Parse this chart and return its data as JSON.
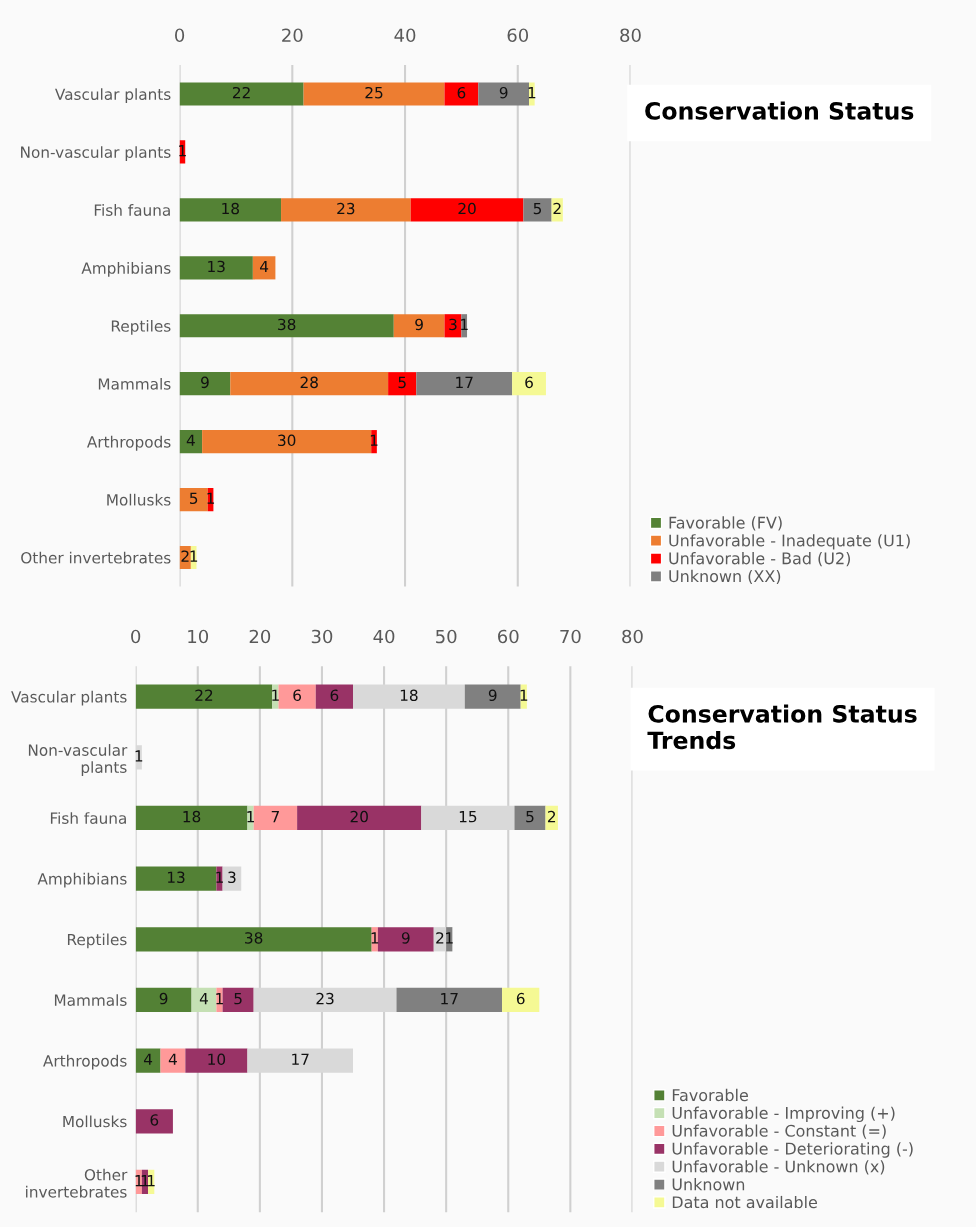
{
  "chart_data": [
    {
      "type": "bar",
      "orientation": "horizontal",
      "stacked": true,
      "title": "Conservation Status",
      "categories": [
        "Vascular plants",
        "Non-vascular plants",
        "Fish fauna",
        "Amphibians",
        "Reptiles",
        "Mammals",
        "Arthropods",
        "Mollusks",
        "Other invertebrates"
      ],
      "series": [
        {
          "name": "Favorable (FV)",
          "color": "#548235",
          "values": [
            22,
            null,
            18,
            13,
            38,
            9,
            4,
            null,
            null
          ]
        },
        {
          "name": "Unfavorable - Inadequate (U1)",
          "color": "#ed7d31",
          "values": [
            25,
            null,
            23,
            4,
            9,
            28,
            30,
            5,
            2
          ]
        },
        {
          "name": "Unfavorable - Bad (U2)",
          "color": "#ff0000",
          "values": [
            6,
            1,
            20,
            null,
            3,
            5,
            1,
            1,
            null
          ]
        },
        {
          "name": "Unknown (XX)",
          "color": "#808080",
          "values": [
            9,
            null,
            5,
            null,
            1,
            17,
            null,
            null,
            null
          ]
        },
        {
          "color": "#f5f994",
          "values": [
            1,
            null,
            2,
            null,
            null,
            6,
            null,
            null,
            1
          ]
        }
      ],
      "xlim": [
        0,
        80
      ],
      "xticks": [
        0,
        20,
        40,
        60,
        80
      ],
      "grid": "x",
      "legend": "bottom right",
      "data_labels": true
    },
    {
      "type": "bar",
      "orientation": "horizontal",
      "stacked": true,
      "title": "Conservation Status Trends",
      "categories": [
        "Vascular plants",
        "Non-vascular plants",
        "Fish fauna",
        "Amphibians",
        "Reptiles",
        "Mammals",
        "Arthropods",
        "Mollusks",
        "Other invertebrates"
      ],
      "series": [
        {
          "name": "Favorable",
          "color": "#538135",
          "values": [
            22,
            null,
            18,
            13,
            38,
            9,
            4,
            null,
            null
          ]
        },
        {
          "name": "Unfavorable - Improving (+)",
          "color": "#c5e0b4",
          "values": [
            1,
            null,
            1,
            null,
            null,
            4,
            null,
            null,
            null
          ]
        },
        {
          "name": "Unfavorable - Constant (=)",
          "color": "#ff9999",
          "values": [
            6,
            null,
            7,
            null,
            1,
            1,
            4,
            null,
            1
          ]
        },
        {
          "name": "Unfavorable - Deteriorating (-)",
          "color": "#993366",
          "values": [
            6,
            null,
            20,
            1,
            9,
            5,
            10,
            6,
            1
          ]
        },
        {
          "name": "Unfavorable - Unknown (x)",
          "color": "#d9d9d9",
          "values": [
            18,
            1,
            15,
            3,
            2,
            23,
            17,
            null,
            null
          ]
        },
        {
          "name": "Unknown",
          "color": "#808080",
          "values": [
            9,
            null,
            5,
            null,
            1,
            17,
            null,
            null,
            null
          ]
        },
        {
          "name": "Data not available",
          "color": "#f5f994",
          "values": [
            1,
            null,
            2,
            null,
            null,
            6,
            null,
            null,
            1
          ]
        }
      ],
      "xlim": [
        0,
        80
      ],
      "xticks": [
        0,
        10,
        20,
        30,
        40,
        50,
        60,
        70,
        80
      ],
      "grid": "x",
      "legend": "bottom right",
      "data_labels": true
    }
  ]
}
